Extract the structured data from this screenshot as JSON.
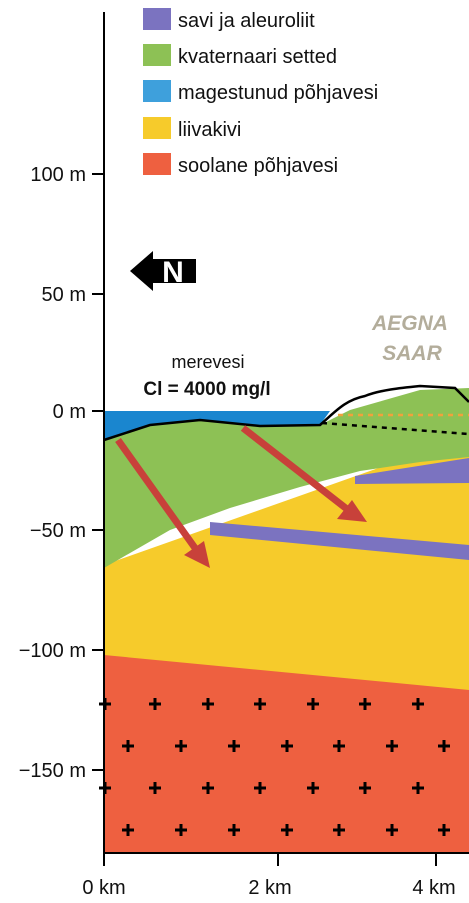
{
  "legend": [
    {
      "label": "savi ja aleuroliit",
      "color": "#7b73c0"
    },
    {
      "label": "kvaternaari setted",
      "color": "#8dc155"
    },
    {
      "label": "magestunud põhjavesi",
      "color": "#3ea0dc"
    },
    {
      "label": "liivakivi",
      "color": "#f6cb2b"
    },
    {
      "label": "soolane põhjavesi",
      "color": "#ee6040"
    }
  ],
  "axes": {
    "depth_ticks": [
      "100 m",
      "50 m",
      "0 m",
      "−50 m",
      "−100 m",
      "−150 m"
    ],
    "distance_ticks": [
      "0 km",
      "2 km",
      "4 km"
    ]
  },
  "north_arrow": {
    "letter": "N",
    "icon": "north-arrow-icon"
  },
  "annotations": {
    "sea": "merevesi",
    "chloride": "Cl = 4000 mg/l",
    "island_line1": "AEGNA",
    "island_line2": "SAAR"
  },
  "colors": {
    "sea": "#1a86cf",
    "arrow": "#c8413a",
    "salt_marks": "#000000",
    "dashed_line": "#000000",
    "dashed_line_orange": "#f0a23c"
  }
}
